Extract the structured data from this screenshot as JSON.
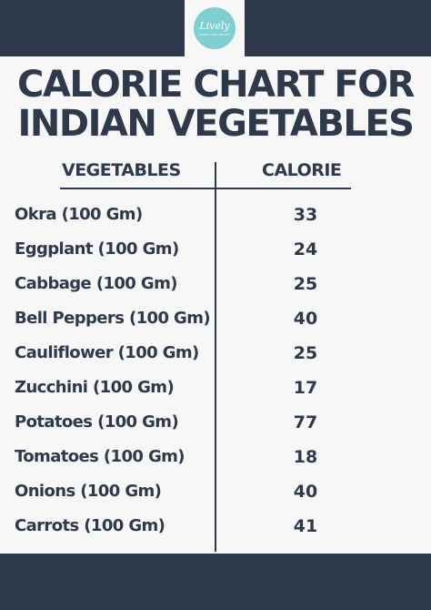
{
  "logo": {
    "script": "Lively",
    "sub": "GLOBAL FOR HEALTH"
  },
  "title": {
    "line1": "CALORIE CHART FOR",
    "line2": "INDIAN VEGETABLES"
  },
  "headers": {
    "vegetables": "VEGETABLES",
    "calorie": "CALORIE"
  },
  "rows": [
    {
      "name": "Okra (100 Gm)",
      "calorie": "33"
    },
    {
      "name": "Eggplant (100 Gm)",
      "calorie": "24"
    },
    {
      "name": "Cabbage (100 Gm)",
      "calorie": "25"
    },
    {
      "name": "Bell Peppers (100 Gm)",
      "calorie": "40"
    },
    {
      "name": "Cauliflower (100 Gm)",
      "calorie": "25"
    },
    {
      "name": "Zucchini (100 Gm)",
      "calorie": "17"
    },
    {
      "name": "Potatoes (100 Gm)",
      "calorie": "77"
    },
    {
      "name": "Tomatoes (100 Gm)",
      "calorie": "18"
    },
    {
      "name": "Onions (100 Gm)",
      "calorie": "40"
    },
    {
      "name": "Carrots (100 Gm)",
      "calorie": "41"
    }
  ],
  "colors": {
    "navy": "#2e3a4c",
    "teal": "#7fcfd0",
    "background": "#f7f7f7"
  }
}
